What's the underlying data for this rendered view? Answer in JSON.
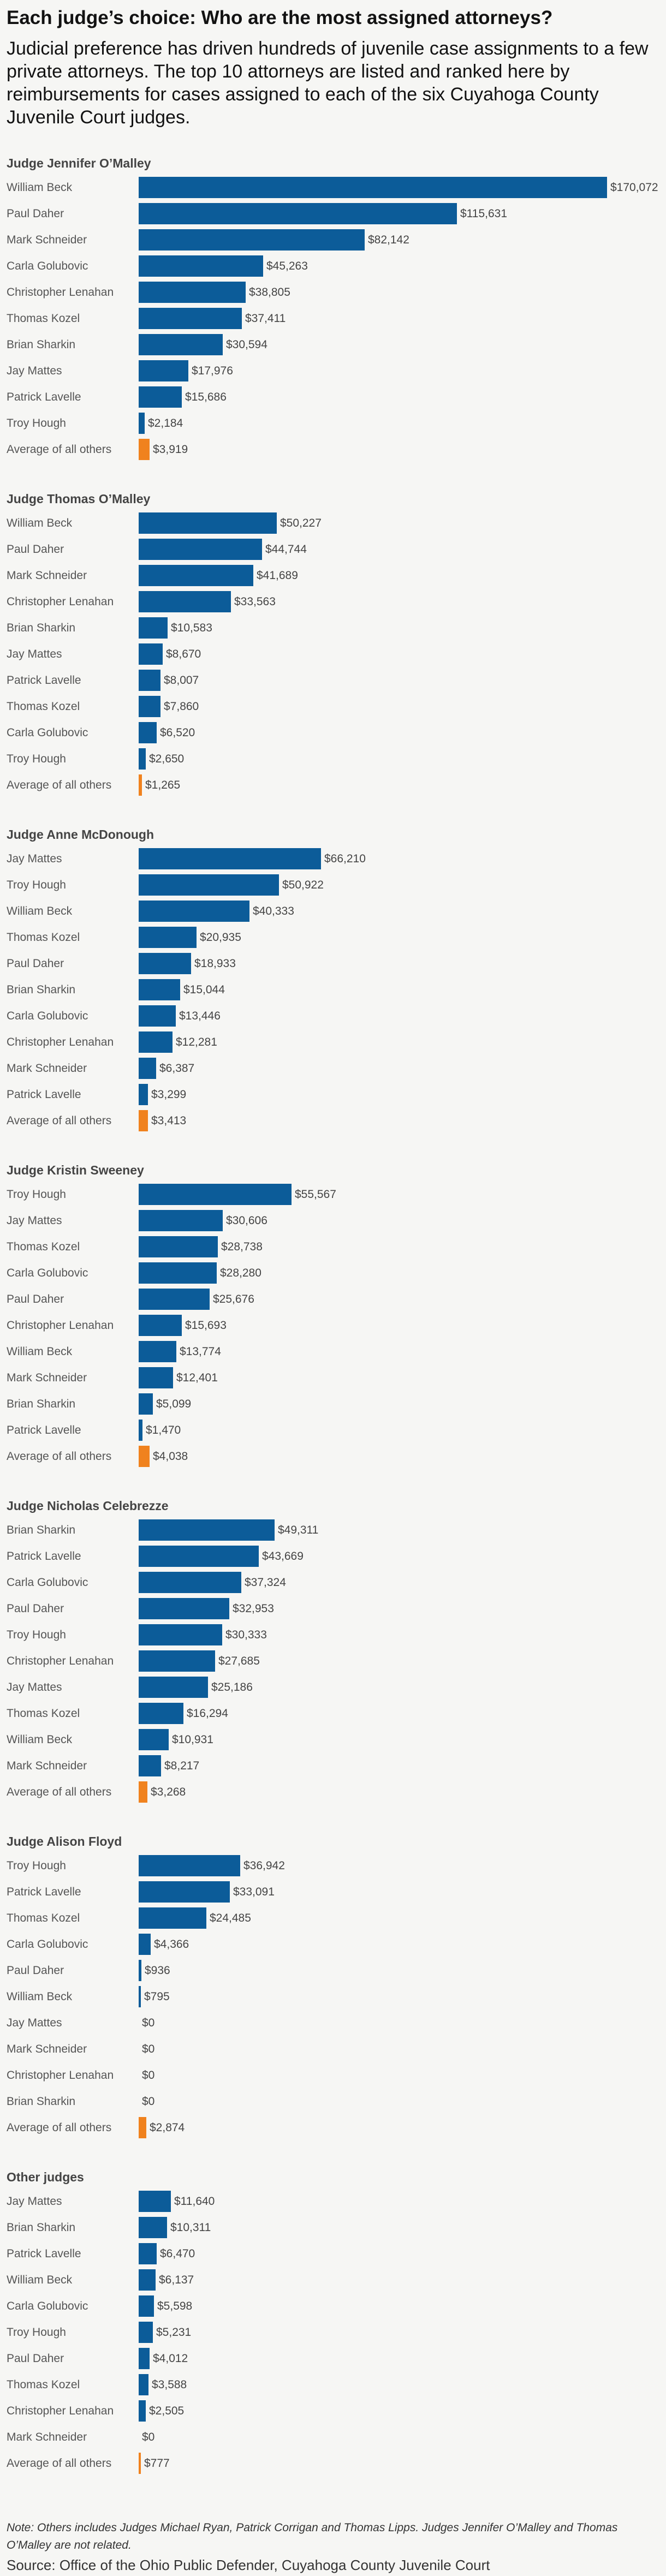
{
  "title": "Each judge’s choice: Who are the most assigned attorneys?",
  "subtitle": "Judicial preference has driven hundreds of juvenile case assignments to a few private attorneys. The top 10 attorneys are listed and ranked here by reimbursements for cases assigned to each of the six Cuyahoga County Juvenile Court judges.",
  "colors": {
    "attorney_bar": "#0c5c99",
    "average_bar": "#f0821e"
  },
  "chart_data": [
    {
      "type": "bar",
      "title": "Judge Jennifer O’Malley",
      "categories": [
        "William Beck",
        "Paul Daher",
        "Mark Schneider",
        "Carla Golubovic",
        "Christopher Lenahan",
        "Thomas Kozel",
        "Brian Sharkin",
        "Jay Mattes",
        "Patrick Lavelle",
        "Troy Hough",
        "Average of all others"
      ],
      "values": [
        170072,
        115631,
        82142,
        45263,
        38805,
        37411,
        30594,
        17976,
        15686,
        2184,
        3919
      ],
      "value_labels": [
        "$170,072",
        "$115,631",
        "$82,142",
        "$45,263",
        "$38,805",
        "$37,411",
        "$30,594",
        "$17,976",
        "$15,686",
        "$2,184",
        "$3,919"
      ]
    },
    {
      "type": "bar",
      "title": "Judge Thomas O’Malley",
      "categories": [
        "William Beck",
        "Paul Daher",
        "Mark Schneider",
        "Christopher Lenahan",
        "Brian Sharkin",
        "Jay Mattes",
        "Patrick Lavelle",
        "Thomas Kozel",
        "Carla Golubovic",
        "Troy Hough",
        "Average of all others"
      ],
      "values": [
        50227,
        44744,
        41689,
        33563,
        10583,
        8670,
        8007,
        7860,
        6520,
        2650,
        1265
      ],
      "value_labels": [
        "$50,227",
        "$44,744",
        "$41,689",
        "$33,563",
        "$10,583",
        "$8,670",
        "$8,007",
        "$7,860",
        "$6,520",
        "$2,650",
        "$1,265"
      ]
    },
    {
      "type": "bar",
      "title": "Judge Anne McDonough",
      "categories": [
        "Jay Mattes",
        "Troy Hough",
        "William Beck",
        "Thomas Kozel",
        "Paul Daher",
        "Brian Sharkin",
        "Carla Golubovic",
        "Christopher Lenahan",
        "Mark Schneider",
        "Patrick Lavelle",
        "Average of all others"
      ],
      "values": [
        66210,
        50922,
        40333,
        20935,
        18933,
        15044,
        13446,
        12281,
        6387,
        3299,
        3413
      ],
      "value_labels": [
        "$66,210",
        "$50,922",
        "$40,333",
        "$20,935",
        "$18,933",
        "$15,044",
        "$13,446",
        "$12,281",
        "$6,387",
        "$3,299",
        "$3,413"
      ]
    },
    {
      "type": "bar",
      "title": "Judge Kristin Sweeney",
      "categories": [
        "Troy Hough",
        "Jay Mattes",
        "Thomas Kozel",
        "Carla Golubovic",
        "Paul Daher",
        "Christopher Lenahan",
        "William Beck",
        "Mark Schneider",
        "Brian Sharkin",
        "Patrick Lavelle",
        "Average of all others"
      ],
      "values": [
        55567,
        30606,
        28738,
        28280,
        25676,
        15693,
        13774,
        12401,
        5099,
        1470,
        4038
      ],
      "value_labels": [
        "$55,567",
        "$30,606",
        "$28,738",
        "$28,280",
        "$25,676",
        "$15,693",
        "$13,774",
        "$12,401",
        "$5,099",
        "$1,470",
        "$4,038"
      ]
    },
    {
      "type": "bar",
      "title": "Judge Nicholas Celebrezze",
      "categories": [
        "Brian Sharkin",
        "Patrick Lavelle",
        "Carla Golubovic",
        "Paul Daher",
        "Troy Hough",
        "Christopher Lenahan",
        "Jay Mattes",
        "Thomas Kozel",
        "William Beck",
        "Mark Schneider",
        "Average of all others"
      ],
      "values": [
        49311,
        43669,
        37324,
        32953,
        30333,
        27685,
        25186,
        16294,
        10931,
        8217,
        3268
      ],
      "value_labels": [
        "$49,311",
        "$43,669",
        "$37,324",
        "$32,953",
        "$30,333",
        "$27,685",
        "$25,186",
        "$16,294",
        "$10,931",
        "$8,217",
        "$3,268"
      ]
    },
    {
      "type": "bar",
      "title": "Judge Alison Floyd",
      "categories": [
        "Troy Hough",
        "Patrick Lavelle",
        "Thomas Kozel",
        "Carla Golubovic",
        "Paul Daher",
        "William Beck",
        "Jay Mattes",
        "Mark Schneider",
        "Christopher Lenahan",
        "Brian Sharkin",
        "Average of all others"
      ],
      "values": [
        36942,
        33091,
        24485,
        4366,
        936,
        795,
        0,
        0,
        0,
        0,
        2874
      ],
      "value_labels": [
        "$36,942",
        "$33,091",
        "$24,485",
        "$4,366",
        "$936",
        "$795",
        "$0",
        "$0",
        "$0",
        "$0",
        "$2,874"
      ]
    },
    {
      "type": "bar",
      "title": "Other judges",
      "categories": [
        "Jay Mattes",
        "Brian Sharkin",
        "Patrick Lavelle",
        "William Beck",
        "Carla Golubovic",
        "Troy Hough",
        "Paul Daher",
        "Thomas Kozel",
        "Christopher Lenahan",
        "Mark Schneider",
        "Average of all others"
      ],
      "values": [
        11640,
        10311,
        6470,
        6137,
        5598,
        5231,
        4012,
        3588,
        2505,
        0,
        777
      ],
      "value_labels": [
        "$11,640",
        "$10,311",
        "$6,470",
        "$6,137",
        "$5,598",
        "$5,231",
        "$4,012",
        "$3,588",
        "$2,505",
        "$0",
        "$777"
      ]
    }
  ],
  "note": "Note: Others includes Judges Michael Ryan, Patrick Corrigan and Thomas Lipps. Judges Jennifer O’Malley and Thomas O’Malley are not related.",
  "source": "Source: Office of the Ohio Public Defender, Cuyahoga County Juvenile Court"
}
